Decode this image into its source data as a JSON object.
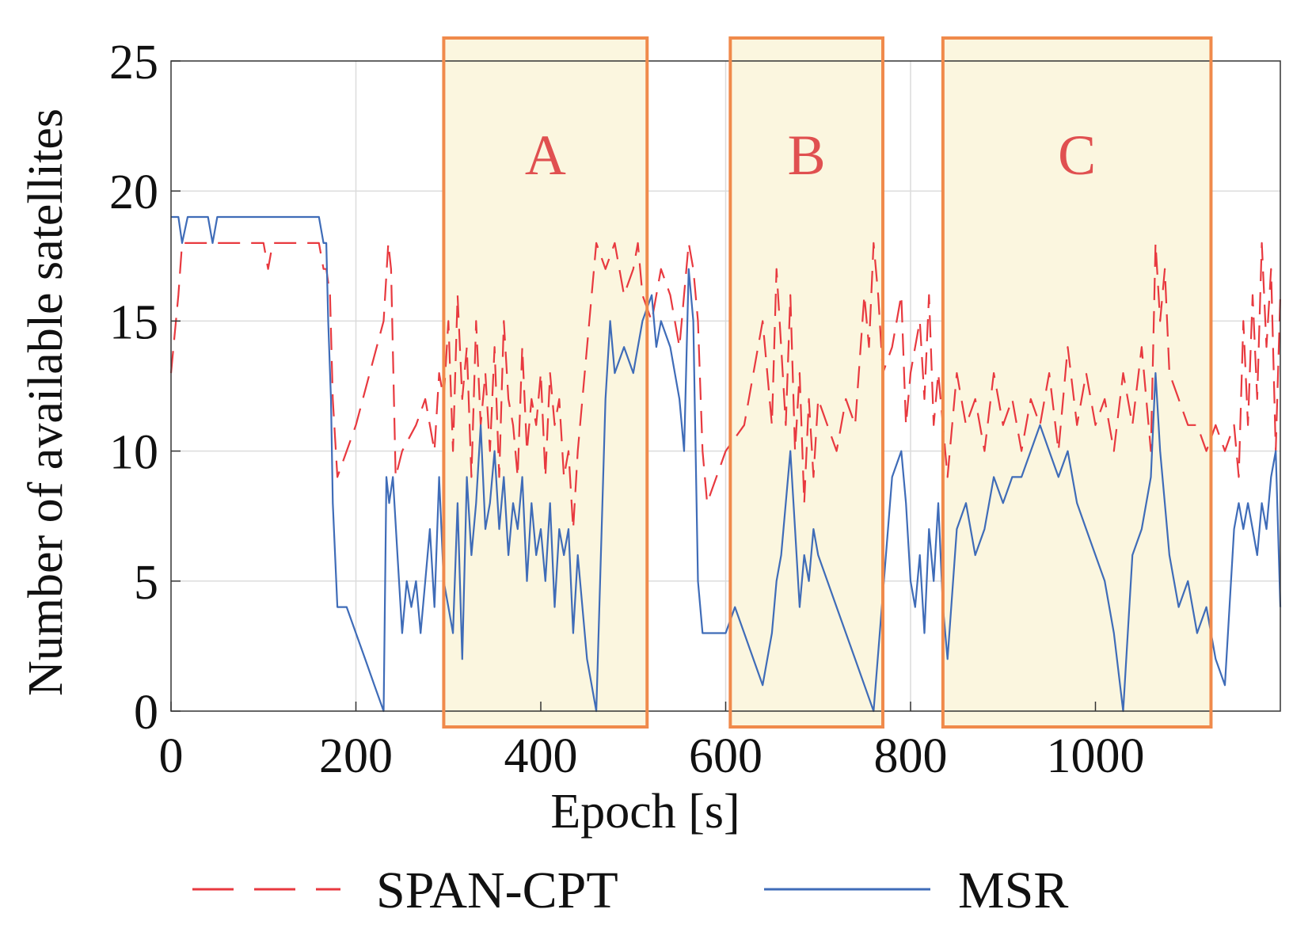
{
  "chart_data": {
    "type": "line",
    "title": "",
    "xlabel": "Epoch [s]",
    "ylabel": "Number of available satellites",
    "xlim": [
      0,
      1200
    ],
    "ylim": [
      0,
      25
    ],
    "x_ticks": [
      0,
      200,
      400,
      600,
      800,
      1000
    ],
    "y_ticks": [
      0,
      5,
      10,
      15,
      20,
      25
    ],
    "grid": true,
    "legend_position": "bottom",
    "regions": [
      {
        "label": "A",
        "x_start": 295,
        "x_end": 515
      },
      {
        "label": "B",
        "x_start": 605,
        "x_end": 770
      },
      {
        "label": "C",
        "x_start": 835,
        "x_end": 1125
      }
    ],
    "series": [
      {
        "name": "SPAN-CPT",
        "style": "dashed",
        "color": "#e8393f",
        "x": [
          0,
          8,
          12,
          20,
          40,
          60,
          100,
          105,
          110,
          160,
          165,
          168,
          172,
          175,
          180,
          200,
          230,
          235,
          238,
          243,
          250,
          265,
          275,
          285,
          290,
          295,
          300,
          305,
          310,
          315,
          320,
          325,
          330,
          335,
          340,
          345,
          350,
          355,
          360,
          365,
          370,
          375,
          380,
          385,
          390,
          395,
          400,
          405,
          410,
          415,
          420,
          425,
          430,
          435,
          440,
          450,
          460,
          470,
          480,
          490,
          500,
          505,
          510,
          520,
          530,
          540,
          550,
          560,
          565,
          570,
          575,
          580,
          600,
          620,
          640,
          650,
          655,
          660,
          665,
          670,
          675,
          680,
          685,
          690,
          695,
          700,
          710,
          720,
          730,
          740,
          750,
          755,
          760,
          765,
          770,
          780,
          790,
          795,
          800,
          805,
          810,
          815,
          820,
          825,
          830,
          840,
          850,
          860,
          870,
          880,
          890,
          900,
          910,
          920,
          930,
          940,
          950,
          960,
          970,
          980,
          990,
          1000,
          1010,
          1020,
          1030,
          1040,
          1050,
          1060,
          1065,
          1070,
          1075,
          1080,
          1090,
          1100,
          1110,
          1120,
          1130,
          1140,
          1150,
          1155,
          1160,
          1165,
          1170,
          1175,
          1180,
          1185,
          1190,
          1195,
          1200
        ],
        "values": [
          13,
          16,
          18,
          18,
          18,
          18,
          18,
          17,
          18,
          18,
          17,
          17,
          16,
          12,
          9,
          11,
          15,
          18,
          17,
          9,
          10,
          11,
          12,
          10,
          13,
          12,
          15,
          10,
          16,
          12,
          14,
          9,
          15,
          11,
          13,
          10,
          14,
          9,
          15,
          12,
          11,
          9,
          14,
          10,
          12,
          11,
          13,
          9,
          13,
          11,
          12,
          9,
          10,
          7,
          10,
          14,
          18,
          17,
          18,
          16,
          17,
          18,
          16,
          15,
          17,
          16,
          14,
          18,
          17,
          15,
          10,
          8,
          10,
          11,
          15,
          11,
          17,
          14,
          11,
          16,
          10,
          13,
          8,
          12,
          9,
          12,
          11,
          10,
          12,
          11,
          16,
          14,
          18,
          16,
          13,
          14,
          16,
          11,
          13,
          14,
          15,
          12,
          16,
          11,
          13,
          9,
          13,
          11,
          12,
          10,
          13,
          11,
          12,
          10,
          12,
          11,
          13,
          10,
          14,
          11,
          13,
          11,
          12,
          10,
          13,
          11,
          14,
          10,
          18,
          15,
          17,
          13,
          12,
          11,
          11,
          10,
          11,
          10,
          11,
          9,
          15,
          11,
          16,
          12,
          18,
          14,
          17,
          10,
          16
        ]
      },
      {
        "name": "MSR",
        "style": "solid",
        "color": "#3f6cb8",
        "x": [
          0,
          8,
          12,
          18,
          40,
          45,
          50,
          100,
          160,
          165,
          168,
          170,
          173,
          175,
          180,
          190,
          200,
          210,
          220,
          230,
          233,
          236,
          240,
          245,
          250,
          255,
          260,
          265,
          270,
          275,
          280,
          285,
          290,
          295,
          300,
          305,
          310,
          315,
          320,
          325,
          330,
          335,
          340,
          345,
          350,
          355,
          360,
          365,
          370,
          375,
          380,
          385,
          390,
          395,
          400,
          405,
          410,
          415,
          420,
          425,
          430,
          435,
          440,
          450,
          460,
          470,
          475,
          480,
          490,
          500,
          510,
          520,
          525,
          530,
          540,
          550,
          555,
          560,
          565,
          570,
          575,
          580,
          590,
          600,
          610,
          620,
          630,
          640,
          650,
          655,
          660,
          665,
          670,
          675,
          680,
          685,
          690,
          695,
          700,
          720,
          740,
          760,
          780,
          790,
          795,
          800,
          805,
          810,
          815,
          820,
          825,
          830,
          835,
          840,
          850,
          860,
          870,
          880,
          890,
          900,
          910,
          920,
          930,
          940,
          950,
          960,
          970,
          980,
          990,
          1000,
          1010,
          1020,
          1030,
          1040,
          1050,
          1060,
          1065,
          1070,
          1075,
          1080,
          1090,
          1100,
          1110,
          1120,
          1130,
          1140,
          1150,
          1155,
          1160,
          1165,
          1170,
          1175,
          1180,
          1185,
          1190,
          1195,
          1200
        ],
        "values": [
          19,
          19,
          18,
          19,
          19,
          18,
          19,
          19,
          19,
          18,
          18,
          15,
          12,
          8,
          4,
          4,
          3,
          2,
          1,
          0,
          9,
          8,
          9,
          6,
          3,
          5,
          4,
          5,
          3,
          5,
          7,
          4,
          9,
          5,
          4,
          3,
          8,
          2,
          9,
          6,
          8,
          11,
          7,
          8,
          10,
          7,
          9,
          6,
          8,
          7,
          9,
          5,
          8,
          6,
          7,
          5,
          8,
          4,
          7,
          6,
          7,
          3,
          6,
          2,
          0,
          12,
          15,
          13,
          14,
          13,
          15,
          16,
          14,
          15,
          14,
          12,
          10,
          17,
          15,
          5,
          3,
          3,
          3,
          3,
          4,
          3,
          2,
          1,
          3,
          5,
          6,
          8,
          10,
          7,
          4,
          6,
          5,
          7,
          6,
          4,
          2,
          0,
          9,
          10,
          8,
          5,
          4,
          6,
          3,
          7,
          5,
          8,
          4,
          2,
          7,
          8,
          6,
          7,
          9,
          8,
          9,
          9,
          10,
          11,
          10,
          9,
          10,
          8,
          7,
          6,
          5,
          3,
          0,
          6,
          7,
          9,
          13,
          10,
          8,
          6,
          4,
          5,
          3,
          4,
          2,
          1,
          7,
          8,
          7,
          8,
          7,
          6,
          8,
          7,
          9,
          10,
          4
        ]
      }
    ]
  }
}
